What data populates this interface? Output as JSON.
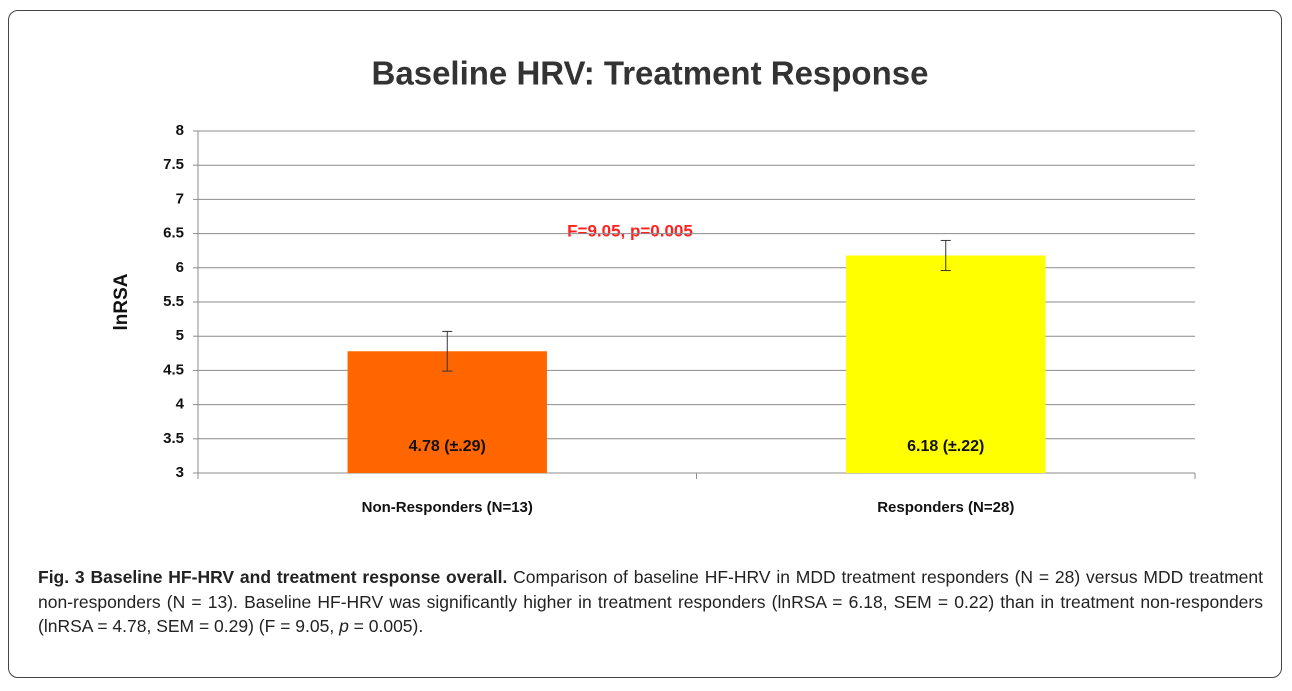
{
  "chart_data": {
    "type": "bar",
    "title": "Baseline HRV: Treatment Response",
    "y_label": "lnRSA",
    "annotation": "F=9.05, p=0.005",
    "categories": [
      "Non-Responders (N=13)",
      "Responders (N=28)"
    ],
    "values": [
      4.78,
      6.18
    ],
    "errors": [
      0.29,
      0.22
    ],
    "value_labels": [
      "4.78 (±.29)",
      "6.18 (±.22)"
    ],
    "colors": [
      "#ff6600",
      "#ffff00"
    ],
    "ylim": [
      3,
      8
    ],
    "yticks": [
      3,
      3.5,
      4,
      4.5,
      5,
      5.5,
      6,
      6.5,
      7,
      7.5,
      8
    ],
    "grid": true
  },
  "caption": {
    "bold": "Fig. 3 Baseline HF-HRV and treatment response overall.",
    "text1": " Comparison of baseline HF-HRV in MDD treatment responders (N = 28) versus MDD treatment non-responders (N = 13). Baseline HF-HRV was significantly higher in treatment responders (lnRSA = 6.18, SEM = 0.22) than in treatment non-responders (lnRSA = 4.78, SEM = 0.29) (F = 9.05, ",
    "italic": "p",
    "text2": " = 0.005)."
  }
}
